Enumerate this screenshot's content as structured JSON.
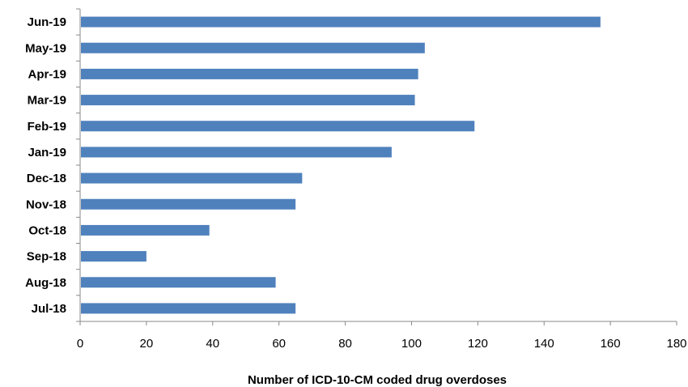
{
  "chart_data": {
    "type": "bar",
    "orientation": "horizontal",
    "categories": [
      "Jul-18",
      "Aug-18",
      "Sep-18",
      "Oct-18",
      "Nov-18",
      "Dec-18",
      "Jan-19",
      "Feb-19",
      "Mar-19",
      "Apr-19",
      "May-19",
      "Jun-19"
    ],
    "values": [
      65,
      59,
      20,
      39,
      65,
      67,
      94,
      119,
      101,
      102,
      104,
      157
    ],
    "xlabel": "Number of ICD-10-CM coded drug overdoses",
    "ylabel": "",
    "title": "",
    "xlim": [
      0,
      180
    ],
    "xticks": [
      0,
      20,
      40,
      60,
      80,
      100,
      120,
      140,
      160,
      180
    ],
    "grid": false,
    "bar_color": "#4f81bd"
  }
}
